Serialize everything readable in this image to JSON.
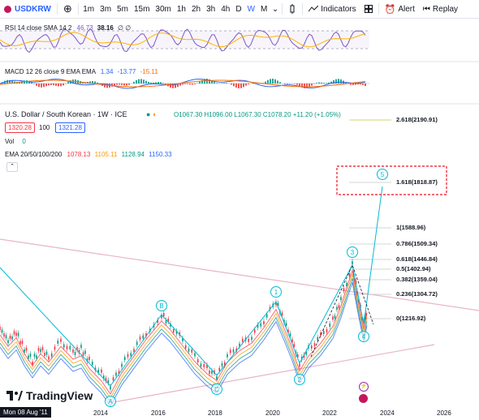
{
  "toolbar": {
    "symbol": "USDKRW",
    "intervals": [
      "1m",
      "3m",
      "5m",
      "15m",
      "30m",
      "1h",
      "2h",
      "3h",
      "4h",
      "D",
      "W",
      "M"
    ],
    "active_interval": "W",
    "indicators_label": "Indicators",
    "alert_label": "Alert",
    "replay_label": "Replay"
  },
  "rsi": {
    "label": "RSI 14 close SMA 14 2",
    "value1": "46.73",
    "value2": "38.16",
    "value3": "∅ ∅"
  },
  "macd": {
    "label": "MACD 12 26 close 9 EMA EMA",
    "value1": "1.34",
    "value2": "-13.77",
    "value3": "-15.11"
  },
  "main": {
    "title": "U.S. Dollar / South Korean · 1W · ICE",
    "ohlc": "O1067.30 H1096.00 L1067.30 C1078.20 +11.20 (+1.05%)",
    "bid": "1320.28",
    "spread": "100",
    "ask": "1321.28",
    "vol_label": "Vol",
    "vol_value": "0",
    "ema_label": "EMA 20/50/100/200",
    "ema1": "1078.13",
    "ema2": "1105.11",
    "ema3": "1128.94",
    "ema4": "1150.33"
  },
  "fib_levels": [
    {
      "label": "2.618(2190.91)"
    },
    {
      "label": "1.618(1818.87)"
    },
    {
      "label": "1(1588.96)"
    },
    {
      "label": "0.786(1509.34)"
    },
    {
      "label": "0.618(1446.84)"
    },
    {
      "label": "0.5(1402.94)"
    },
    {
      "label": "0.382(1359.04)"
    },
    {
      "label": "0.236(1304.72)"
    },
    {
      "label": "0(1216.92)"
    }
  ],
  "waves": [
    "A",
    "B",
    "C",
    "1",
    "2",
    "3",
    "4",
    "5"
  ],
  "dates": [
    "2014",
    "2016",
    "2018",
    "2020",
    "2022",
    "2024",
    "2026"
  ],
  "cursor_date": "Mon 08 Aug '11",
  "brand": "TradingView",
  "colors": {
    "accent": "#2962ff",
    "wave": "#00bcd4",
    "up": "#089981",
    "down": "#f23645",
    "trend": "#e8b4c8",
    "rsi": "#7e57c2",
    "rsi_sma": "#ffb300"
  }
}
